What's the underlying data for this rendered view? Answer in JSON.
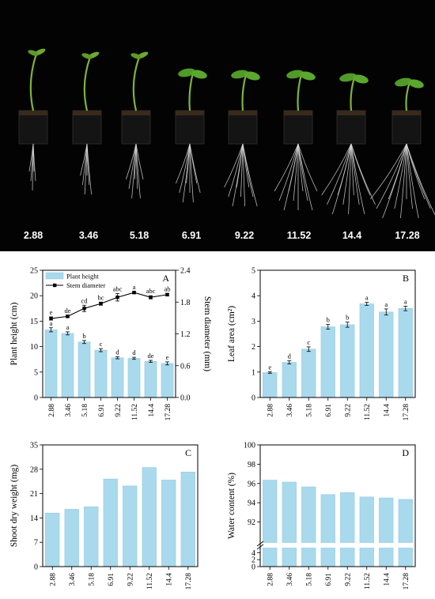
{
  "photo_panel": {
    "labels": [
      "2.88",
      "3.46",
      "5.18",
      "6.91",
      "9.22",
      "11.52",
      "14.4",
      "17.28"
    ],
    "background": "#030303",
    "label_color": "#ffffff"
  },
  "colors": {
    "bar": "#a9d9ec",
    "bar_edge": "#96cbe0",
    "line": "#000000",
    "axis": "#000000"
  },
  "chart_data": [
    {
      "panel": "A",
      "type": "bar",
      "categories": [
        "2.88",
        "3.46",
        "5.18",
        "6.91",
        "9.22",
        "11.52",
        "14.4",
        "17.28"
      ],
      "ylabel": "Plant height (cm)",
      "y2label": "Stem diameter (mm)",
      "ylim": [
        0,
        25
      ],
      "yticks": [
        "0",
        "5",
        "10",
        "15",
        "20",
        "25"
      ],
      "y2lim": [
        0.0,
        2.4
      ],
      "y2ticks": [
        "0.0",
        "0.6",
        "1.2",
        "1.8",
        "2.4"
      ],
      "legend": {
        "position": "top-left",
        "entries": [
          "Plant height",
          "Stem diameter"
        ]
      },
      "series": [
        {
          "name": "Plant height",
          "type": "bar",
          "axis": "left",
          "values": [
            13.3,
            12.6,
            10.9,
            9.3,
            7.8,
            7.7,
            7.1,
            6.7
          ],
          "errors": [
            0.4,
            0.3,
            0.3,
            0.3,
            0.2,
            0.2,
            0.2,
            0.3
          ],
          "letters": [
            "a",
            "a",
            "b",
            "c",
            "d",
            "d",
            "de",
            "e"
          ]
        },
        {
          "name": "Stem diameter",
          "type": "line",
          "axis": "right",
          "values": [
            1.49,
            1.53,
            1.68,
            1.77,
            1.89,
            1.98,
            1.89,
            1.94
          ],
          "errors": [
            0.03,
            0.02,
            0.06,
            0.03,
            0.07,
            0.02,
            0.03,
            0.02
          ],
          "letters": [
            "e",
            "de",
            "cd",
            "bc",
            "abc",
            "a",
            "abc",
            "ab"
          ]
        }
      ]
    },
    {
      "panel": "B",
      "type": "bar",
      "categories": [
        "2.88",
        "3.46",
        "5.18",
        "6.91",
        "9.22",
        "11.52",
        "14.4",
        "17.28"
      ],
      "ylabel": "Leaf area (cm²)",
      "ylim": [
        0,
        5
      ],
      "yticks": [
        "0",
        "1",
        "2",
        "3",
        "4",
        "5"
      ],
      "series": [
        {
          "name": "",
          "values": [
            0.98,
            1.38,
            1.9,
            2.78,
            2.86,
            3.68,
            3.36,
            3.5
          ],
          "errors": [
            0.03,
            0.06,
            0.09,
            0.09,
            0.1,
            0.06,
            0.12,
            0.09
          ],
          "letters": [
            "e",
            "d",
            "c",
            "b",
            "b",
            "a",
            "a",
            "a"
          ]
        }
      ]
    },
    {
      "panel": "C",
      "type": "bar",
      "categories": [
        "2.88",
        "3.46",
        "5.18",
        "6.91",
        "9.22",
        "11.52",
        "14.4",
        "17.28"
      ],
      "ylabel": "Shoot dry weight (mg)",
      "ylim": [
        0,
        35
      ],
      "yticks": [
        "0",
        "7",
        "14",
        "21",
        "28",
        "35"
      ],
      "series": [
        {
          "name": "",
          "values": [
            15.4,
            16.5,
            17.2,
            25.2,
            23.2,
            28.5,
            24.9,
            27.2
          ]
        }
      ]
    },
    {
      "panel": "D",
      "type": "bar",
      "categories": [
        "2.88",
        "3.46",
        "5.18",
        "6.91",
        "9.22",
        "11.52",
        "14.4",
        "17.28"
      ],
      "ylabel": "Water content (%)",
      "ylim": [
        0,
        100
      ],
      "axis_break": [
        4,
        90
      ],
      "yticks_upper": [
        "92",
        "94",
        "96",
        "98",
        "100"
      ],
      "yticks_lower": [
        "0",
        "2",
        "4"
      ],
      "series": [
        {
          "name": "",
          "values": [
            96.35,
            96.15,
            95.65,
            94.85,
            95.05,
            94.6,
            94.5,
            94.35
          ]
        }
      ]
    }
  ]
}
